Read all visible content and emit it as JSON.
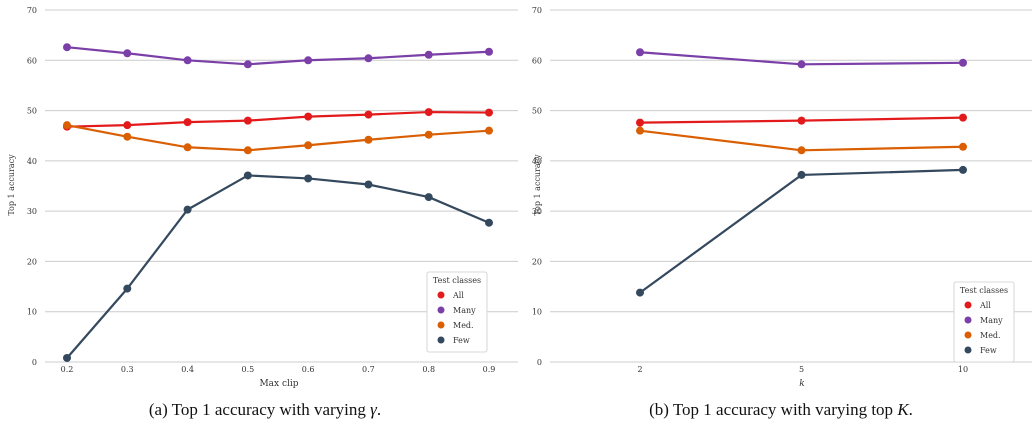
{
  "chart_data": [
    {
      "type": "line",
      "caption_prefix": "(a) Top 1 accuracy with varying ",
      "caption_symbol": "γ",
      "caption_suffix": ".",
      "xlabel": "Max clip",
      "ylabel": "Top 1 accuracy",
      "ylim": [
        0,
        70
      ],
      "yticks": [
        0,
        10,
        20,
        30,
        40,
        50,
        60,
        70
      ],
      "x": [
        0.2,
        0.3,
        0.4,
        0.5,
        0.6,
        0.7,
        0.8,
        0.9
      ],
      "xtick_labels": [
        "0.2",
        "0.3",
        "0.4",
        "0.5",
        "0.6",
        "0.7",
        "0.8",
        "0.9"
      ],
      "grid": "horizontal",
      "legend_title": "Test classes",
      "legend_position": "bottom-right",
      "series": [
        {
          "name": "All",
          "color": "#e31a1c",
          "values": [
            46.8,
            47.1,
            47.7,
            48.0,
            48.8,
            49.2,
            49.7,
            49.6
          ]
        },
        {
          "name": "Many",
          "color": "#7b3fa8",
          "values": [
            62.6,
            61.4,
            60.0,
            59.2,
            60.0,
            60.4,
            61.1,
            61.7
          ]
        },
        {
          "name": "Med.",
          "color": "#d95f02",
          "values": [
            47.1,
            44.8,
            42.7,
            42.1,
            43.1,
            44.2,
            45.2,
            46.0
          ]
        },
        {
          "name": "Few",
          "color": "#34495e",
          "values": [
            0.8,
            14.6,
            30.3,
            37.1,
            36.5,
            35.3,
            32.8,
            27.7
          ]
        }
      ]
    },
    {
      "type": "line",
      "caption_prefix": "(b) Top 1 accuracy with varying top ",
      "caption_symbol": "K",
      "caption_suffix": ".",
      "xlabel": "k",
      "ylabel": "Top 1 accuracy",
      "ylim": [
        0,
        70
      ],
      "yticks": [
        0,
        10,
        20,
        30,
        40,
        50,
        60,
        70
      ],
      "x": [
        2,
        5,
        10
      ],
      "xtick_labels": [
        "2",
        "5",
        "10"
      ],
      "grid": "horizontal",
      "legend_title": "Test classes",
      "legend_position": "bottom-right",
      "series": [
        {
          "name": "All",
          "color": "#e31a1c",
          "values": [
            47.6,
            48.0,
            48.6
          ]
        },
        {
          "name": "Many",
          "color": "#7b3fa8",
          "values": [
            61.6,
            59.2,
            59.5
          ]
        },
        {
          "name": "Med.",
          "color": "#d95f02",
          "values": [
            46.0,
            42.1,
            42.8
          ]
        },
        {
          "name": "Few",
          "color": "#34495e",
          "values": [
            13.8,
            37.2,
            38.2
          ]
        }
      ]
    }
  ]
}
